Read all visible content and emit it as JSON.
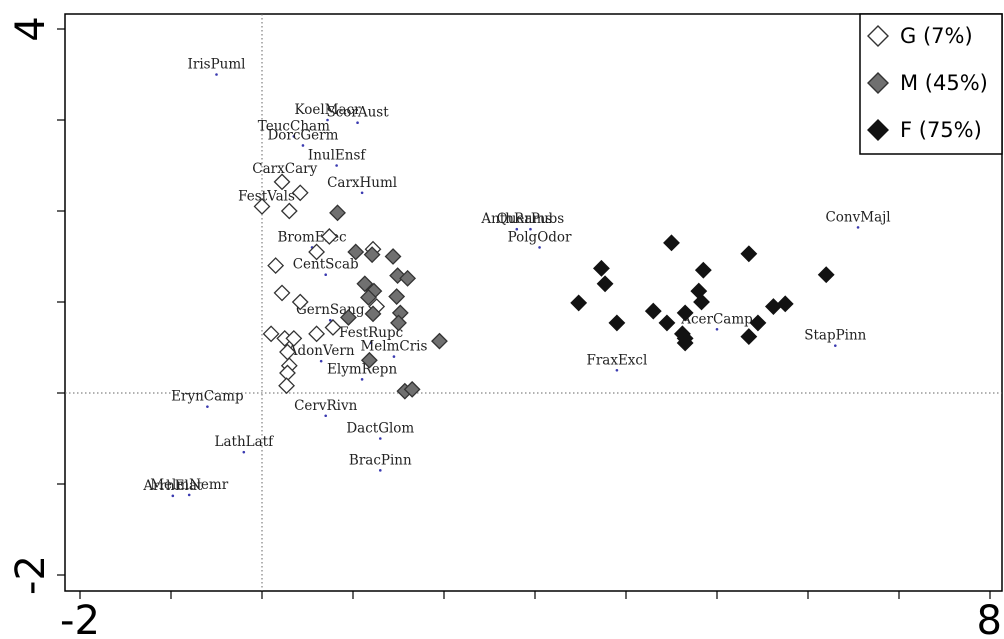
{
  "chart_data": {
    "type": "scatter",
    "xlim": [
      -2,
      8
    ],
    "ylim": [
      -2,
      4
    ],
    "x_ticks": [
      -2,
      8
    ],
    "y_ticks": [
      4,
      -2
    ],
    "reference_lines": {
      "x": 0,
      "y": 0
    },
    "grid": false,
    "legend_position": "top-right",
    "colors": {
      "G": "#ffffff",
      "M": "#707070",
      "F": "#121212",
      "species_dot": "#3a3ab0"
    },
    "legend": [
      {
        "key": "G",
        "label": "G (7%)"
      },
      {
        "key": "M",
        "label": "M (45%)"
      },
      {
        "key": "F",
        "label": "F (75%)"
      }
    ],
    "series": [
      {
        "name": "G (7%)",
        "key": "G",
        "points": [
          [
            0.0,
            2.05
          ],
          [
            0.3,
            2.0
          ],
          [
            0.22,
            2.32
          ],
          [
            0.42,
            2.2
          ],
          [
            0.74,
            1.72
          ],
          [
            0.6,
            1.55
          ],
          [
            0.15,
            1.4
          ],
          [
            0.22,
            1.1
          ],
          [
            0.42,
            1.0
          ],
          [
            1.22,
            1.58
          ],
          [
            1.26,
            0.95
          ],
          [
            0.1,
            0.65
          ],
          [
            0.25,
            0.6
          ],
          [
            0.35,
            0.6
          ],
          [
            0.6,
            0.65
          ],
          [
            0.78,
            0.72
          ],
          [
            0.28,
            0.45
          ],
          [
            0.3,
            0.3
          ],
          [
            0.28,
            0.22
          ],
          [
            0.27,
            0.08
          ]
        ]
      },
      {
        "name": "M (45%)",
        "key": "M",
        "points": [
          [
            0.83,
            1.98
          ],
          [
            1.03,
            1.55
          ],
          [
            1.21,
            1.52
          ],
          [
            1.44,
            1.5
          ],
          [
            1.49,
            1.29
          ],
          [
            1.6,
            1.26
          ],
          [
            1.13,
            1.2
          ],
          [
            1.23,
            1.12
          ],
          [
            1.17,
            1.05
          ],
          [
            1.48,
            1.06
          ],
          [
            1.52,
            0.88
          ],
          [
            1.22,
            0.87
          ],
          [
            0.95,
            0.83
          ],
          [
            1.5,
            0.77
          ],
          [
            1.95,
            0.57
          ],
          [
            1.18,
            0.36
          ],
          [
            1.57,
            0.02
          ],
          [
            1.65,
            0.04
          ]
        ]
      },
      {
        "name": "F (75%)",
        "key": "F",
        "points": [
          [
            4.5,
            1.65
          ],
          [
            5.35,
            1.53
          ],
          [
            3.73,
            1.37
          ],
          [
            3.77,
            1.2
          ],
          [
            4.85,
            1.35
          ],
          [
            6.2,
            1.3
          ],
          [
            4.8,
            1.12
          ],
          [
            4.83,
            1.0
          ],
          [
            3.48,
            0.99
          ],
          [
            4.3,
            0.9
          ],
          [
            5.62,
            0.95
          ],
          [
            5.75,
            0.98
          ],
          [
            4.65,
            0.88
          ],
          [
            4.45,
            0.77
          ],
          [
            3.9,
            0.77
          ],
          [
            5.45,
            0.77
          ],
          [
            4.62,
            0.65
          ],
          [
            4.65,
            0.6
          ],
          [
            5.35,
            0.62
          ],
          [
            4.65,
            0.55
          ]
        ]
      }
    ],
    "species": [
      {
        "name": "IrisPuml",
        "x": -0.5,
        "y": 3.5
      },
      {
        "name": "KoelMacr",
        "x": 0.72,
        "y": 3.0
      },
      {
        "name": "ScorAust",
        "x": 1.05,
        "y": 2.97
      },
      {
        "name": "TeucCham",
        "x": 0.35,
        "y": 2.82
      },
      {
        "name": "DorcGerm",
        "x": 0.45,
        "y": 2.72
      },
      {
        "name": "InulEnsf",
        "x": 0.82,
        "y": 2.5
      },
      {
        "name": "CarxCary",
        "x": 0.25,
        "y": 2.35
      },
      {
        "name": "FestVals",
        "x": 0.05,
        "y": 2.05
      },
      {
        "name": "CarxHuml",
        "x": 1.1,
        "y": 2.2
      },
      {
        "name": "AnthRams",
        "x": 2.8,
        "y": 1.8
      },
      {
        "name": "PolgOdor",
        "x": 3.05,
        "y": 1.6
      },
      {
        "name": "QuerPubs",
        "x": 2.95,
        "y": 1.8
      },
      {
        "name": "ConvMajl",
        "x": 6.55,
        "y": 1.82
      },
      {
        "name": "BromErec",
        "x": 0.55,
        "y": 1.6
      },
      {
        "name": "CentScab",
        "x": 0.7,
        "y": 1.3
      },
      {
        "name": "GernSang",
        "x": 0.75,
        "y": 0.8
      },
      {
        "name": "AcerCamp",
        "x": 5.0,
        "y": 0.7
      },
      {
        "name": "StapPinn",
        "x": 6.3,
        "y": 0.52
      },
      {
        "name": "FestRupc",
        "x": 1.2,
        "y": 0.55
      },
      {
        "name": "MelmCris",
        "x": 1.45,
        "y": 0.4
      },
      {
        "name": "AdonVern",
        "x": 0.65,
        "y": 0.35
      },
      {
        "name": "ElymRepn",
        "x": 1.1,
        "y": 0.15
      },
      {
        "name": "FraxExcl",
        "x": 3.9,
        "y": 0.25
      },
      {
        "name": "ErynCamp",
        "x": -0.6,
        "y": -0.15
      },
      {
        "name": "CervRivn",
        "x": 0.7,
        "y": -0.25
      },
      {
        "name": "DactGlom",
        "x": 1.3,
        "y": -0.5
      },
      {
        "name": "LathLatf",
        "x": -0.2,
        "y": -0.65
      },
      {
        "name": "BracPinn",
        "x": 1.3,
        "y": -0.85
      },
      {
        "name": "MelmNemr",
        "x": -0.8,
        "y": -1.12
      },
      {
        "name": "ArrhElat",
        "x": -0.98,
        "y": -1.13
      }
    ]
  }
}
